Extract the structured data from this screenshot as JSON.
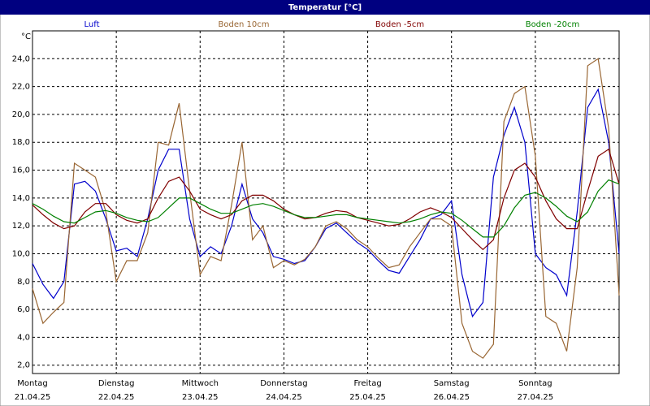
{
  "chart_data": {
    "type": "line",
    "title": "Temperatur [°C]",
    "y_unit": "°C",
    "x": [
      0,
      3,
      6,
      9,
      12,
      15,
      18,
      21,
      24,
      27,
      30,
      33,
      36,
      39,
      42,
      45,
      48,
      51,
      54,
      57,
      60,
      63,
      66,
      69,
      72,
      75,
      78,
      81,
      84,
      87,
      90,
      93,
      96,
      99,
      102,
      105,
      108,
      111,
      114,
      117,
      120,
      123,
      126,
      129,
      132,
      135,
      138,
      141,
      144,
      147,
      150,
      153,
      156,
      159,
      162,
      165,
      168
    ],
    "xlim": [
      0,
      168
    ],
    "xticks": [
      {
        "value": 0,
        "label": "21.04.25"
      },
      {
        "value": 24,
        "label": "22.04.25"
      },
      {
        "value": 48,
        "label": "23.04.25"
      },
      {
        "value": 72,
        "label": "24.04.25"
      },
      {
        "value": 96,
        "label": "25.04.25"
      },
      {
        "value": 120,
        "label": "26.04.25"
      },
      {
        "value": 144,
        "label": "27.04.25"
      }
    ],
    "xtick_days": [
      "Montag",
      "Dienstag",
      "Mittwoch",
      "Donnerstag",
      "Freitag",
      "Samstag",
      "Sonntag"
    ],
    "ylim": [
      1.4,
      26
    ],
    "yticks": [
      {
        "value": 2,
        "label": "2,0"
      },
      {
        "value": 4,
        "label": "4,0"
      },
      {
        "value": 6,
        "label": "6,0"
      },
      {
        "value": 8,
        "label": "8,0"
      },
      {
        "value": 10,
        "label": "10,0"
      },
      {
        "value": 12,
        "label": "12,0"
      },
      {
        "value": 14,
        "label": "14,0"
      },
      {
        "value": 16,
        "label": "16,0"
      },
      {
        "value": 18,
        "label": "18,0"
      },
      {
        "value": 20,
        "label": "20,0"
      },
      {
        "value": 22,
        "label": "22,0"
      },
      {
        "value": 24,
        "label": "24,0"
      }
    ],
    "grid": true,
    "series": [
      {
        "name": "Luft",
        "color": "#0000cc",
        "values": [
          9.3,
          7.8,
          6.8,
          8.0,
          15.0,
          15.2,
          14.5,
          12.5,
          10.2,
          10.4,
          9.8,
          12.5,
          16.0,
          17.5,
          17.5,
          12.5,
          9.8,
          10.5,
          10.0,
          12.0,
          15.0,
          12.5,
          11.5,
          9.8,
          9.6,
          9.3,
          9.5,
          10.5,
          11.8,
          12.2,
          11.5,
          10.8,
          10.3,
          9.5,
          8.8,
          8.6,
          9.8,
          11.0,
          12.5,
          12.8,
          13.8,
          8.5,
          5.5,
          6.5,
          15.5,
          18.5,
          20.5,
          18.0,
          10.0,
          9.0,
          8.5,
          7.0,
          13.0,
          20.5,
          21.8,
          18.0,
          10.0
        ]
      },
      {
        "name": "Boden 10cm",
        "color": "#996633",
        "values": [
          7.5,
          5.0,
          5.8,
          6.5,
          16.5,
          16.0,
          15.5,
          13.0,
          8.0,
          9.5,
          9.5,
          11.5,
          18.0,
          17.8,
          20.8,
          14.5,
          8.5,
          9.8,
          9.5,
          13.5,
          18.0,
          11.0,
          12.0,
          9.0,
          9.5,
          9.2,
          9.6,
          10.5,
          12.0,
          12.3,
          11.8,
          11.0,
          10.5,
          9.7,
          9.0,
          9.2,
          10.5,
          11.5,
          12.5,
          12.5,
          12.0,
          5.0,
          3.0,
          2.5,
          3.5,
          19.5,
          21.5,
          22.0,
          17.0,
          5.5,
          5.0,
          3.0,
          9.0,
          23.5,
          24.0,
          19.0,
          7.0
        ]
      },
      {
        "name": "Boden -5cm",
        "color": "#800000",
        "values": [
          13.5,
          12.8,
          12.2,
          11.8,
          12.0,
          13.0,
          13.6,
          13.6,
          12.8,
          12.4,
          12.2,
          12.5,
          14.0,
          15.2,
          15.5,
          14.5,
          13.2,
          12.8,
          12.5,
          12.8,
          13.8,
          14.2,
          14.2,
          13.8,
          13.2,
          12.8,
          12.5,
          12.6,
          12.9,
          13.1,
          13.0,
          12.6,
          12.4,
          12.2,
          12.0,
          12.1,
          12.5,
          13.0,
          13.3,
          13.0,
          12.6,
          11.8,
          11.0,
          10.3,
          11.0,
          14.0,
          16.0,
          16.5,
          15.5,
          13.8,
          12.5,
          11.8,
          11.8,
          14.5,
          17.0,
          17.5,
          15.0
        ]
      },
      {
        "name": "Boden -20cm",
        "color": "#008000",
        "values": [
          13.6,
          13.2,
          12.7,
          12.3,
          12.2,
          12.6,
          13.0,
          13.1,
          12.9,
          12.6,
          12.4,
          12.3,
          12.6,
          13.3,
          14.0,
          14.0,
          13.6,
          13.2,
          12.9,
          12.9,
          13.2,
          13.5,
          13.6,
          13.4,
          13.1,
          12.8,
          12.6,
          12.6,
          12.7,
          12.8,
          12.8,
          12.6,
          12.5,
          12.4,
          12.3,
          12.2,
          12.3,
          12.5,
          12.8,
          13.0,
          12.9,
          12.4,
          11.8,
          11.2,
          11.2,
          12.0,
          13.3,
          14.2,
          14.4,
          14.0,
          13.4,
          12.7,
          12.3,
          13.0,
          14.5,
          15.3,
          15.0
        ]
      }
    ]
  }
}
